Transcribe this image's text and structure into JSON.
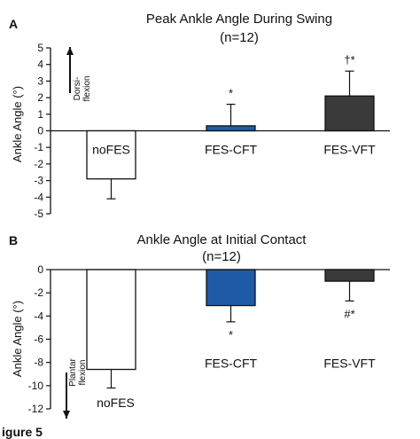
{
  "colors": {
    "bar_white": "#ffffff",
    "bar_blue": "#1f5aa6",
    "bar_dark": "#3a3a3a",
    "stroke": "#111111"
  },
  "figure_caption": "igure 5",
  "chart_data": [
    {
      "type": "bar",
      "panel_label": "A",
      "title": "Peak Ankle Angle During Swing",
      "subtitle": "(n=12)",
      "ylabel": "Ankle Angle (°)",
      "direction_note": "Dorsi-flexion",
      "direction_note_lines": [
        "Dorsi-",
        "flexion"
      ],
      "direction": "up",
      "ylim": [
        -5,
        5
      ],
      "yticks": [
        -5,
        -4,
        -3,
        -2,
        -1,
        0,
        1,
        2,
        3,
        4,
        5
      ],
      "ytick_labels": [
        "-5",
        "-4",
        "-3",
        "-2",
        "-1",
        "0",
        "1",
        "2",
        "3",
        "4",
        "5"
      ],
      "categories": [
        "noFES",
        "FES-CFT",
        "FES-VFT"
      ],
      "values": [
        -2.9,
        0.3,
        2.1
      ],
      "errors": [
        1.2,
        1.3,
        1.5
      ],
      "annotations": [
        "",
        "*",
        "†*"
      ],
      "bar_colors": [
        "#ffffff",
        "#1f5aa6",
        "#3a3a3a"
      ],
      "grid": false
    },
    {
      "type": "bar",
      "panel_label": "B",
      "title": "Ankle Angle at Initial Contact",
      "subtitle": "(n=12)",
      "ylabel": "Ankle Angle (°)",
      "direction_note": "Plantar flexion",
      "direction_note_lines": [
        "Plantar",
        "flexion"
      ],
      "direction": "down",
      "ylim": [
        -12,
        0
      ],
      "yticks": [
        -12,
        -10,
        -8,
        -6,
        -4,
        -2,
        0
      ],
      "ytick_labels": [
        "-12",
        "-10",
        "-8",
        "-6",
        "-4",
        "-2",
        "0"
      ],
      "categories": [
        "noFES",
        "FES-CFT",
        "FES-VFT"
      ],
      "values": [
        -8.6,
        -3.1,
        -1.0
      ],
      "errors": [
        1.6,
        1.4,
        1.7
      ],
      "annotations": [
        "",
        "*",
        "#*"
      ],
      "bar_colors": [
        "#ffffff",
        "#1f5aa6",
        "#3a3a3a"
      ],
      "grid": false
    }
  ]
}
